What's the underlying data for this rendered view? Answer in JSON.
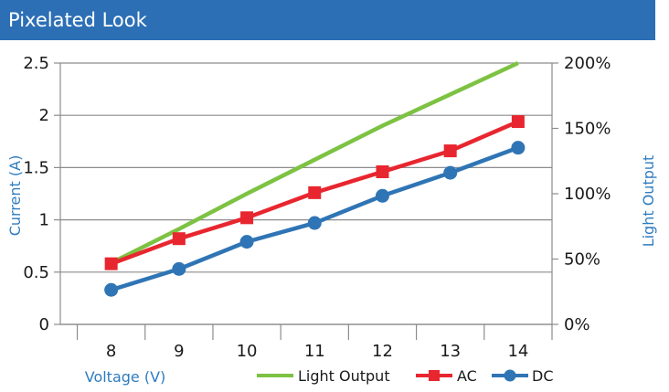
{
  "header": {
    "title": "Pixelated Look"
  },
  "colors": {
    "header_bg": "#2c6fb5",
    "light_output": "#7dc242",
    "ac": "#e8262f",
    "dc": "#2f75b5",
    "axis_title": "#2f7cc0",
    "grid": "#8c8c8c"
  },
  "chart_data": {
    "type": "line",
    "title": "Pixelated Look",
    "xlabel": "Voltage (V)",
    "ylabel": "Current (A)",
    "y2label": "Light Output",
    "x": [
      8,
      9,
      10,
      11,
      12,
      13,
      14
    ],
    "xlim": [
      7.25,
      14.5
    ],
    "ylim": [
      0,
      2.5
    ],
    "y_ticks": [
      "0",
      "0.5",
      "1",
      "1.5",
      "2",
      "2.5"
    ],
    "y2lim": [
      0,
      200
    ],
    "y2_ticks": [
      "0%",
      "50%",
      "100%",
      "150%",
      "200%"
    ],
    "grid": true,
    "legend_position": "bottom",
    "series": [
      {
        "name": "Light Output",
        "axis": "right",
        "unit": "%",
        "marker": "none",
        "color": "#7dc242",
        "values": [
          47,
          73,
          100,
          126,
          152,
          176,
          200
        ]
      },
      {
        "name": "AC",
        "axis": "left",
        "marker": "square",
        "color": "#e8262f",
        "values": [
          0.58,
          0.82,
          1.02,
          1.26,
          1.46,
          1.66,
          1.94
        ]
      },
      {
        "name": "DC",
        "axis": "left",
        "marker": "circle",
        "color": "#2f75b5",
        "values": [
          0.33,
          0.53,
          0.79,
          0.97,
          1.23,
          1.45,
          1.69
        ]
      }
    ]
  }
}
